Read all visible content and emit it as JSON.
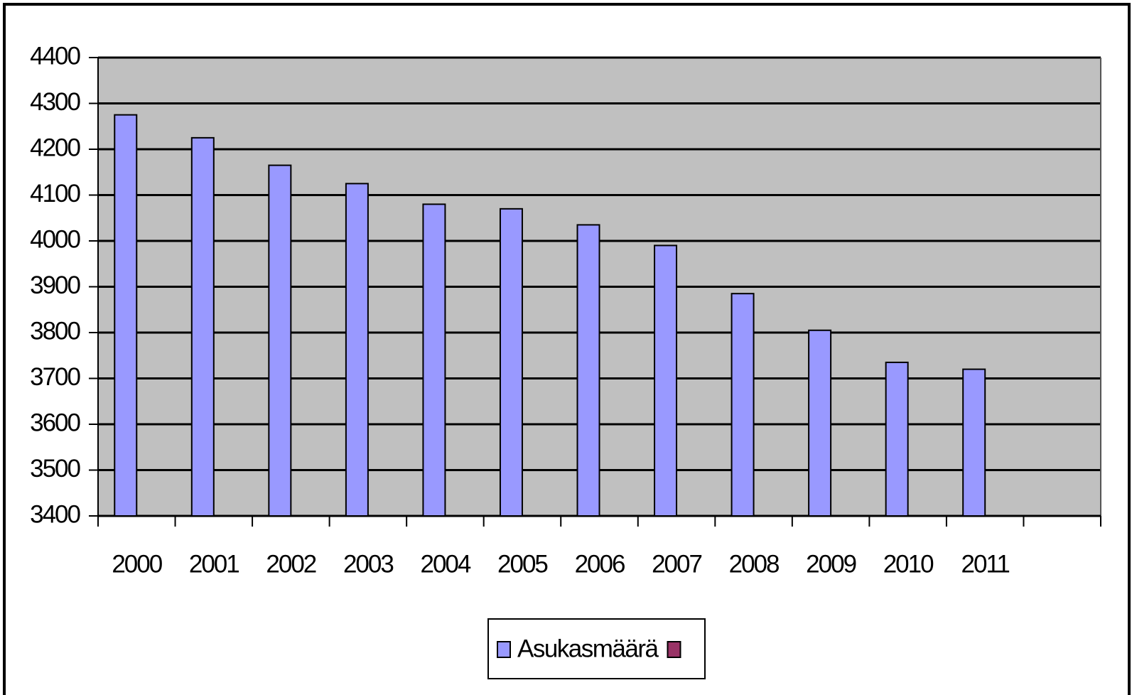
{
  "chart_data": {
    "type": "bar",
    "categories": [
      "2000",
      "2001",
      "2002",
      "2003",
      "2004",
      "2005",
      "2006",
      "2007",
      "2008",
      "2009",
      "2010",
      "2011",
      null
    ],
    "series": [
      {
        "name": "Asukasmäärä",
        "color": "#9999ff",
        "values": [
          4275,
          4225,
          4165,
          4125,
          4080,
          4070,
          4035,
          3990,
          3885,
          3805,
          3735,
          3720,
          null
        ]
      },
      {
        "name": null,
        "color": "#993366",
        "values": [
          null,
          null,
          null,
          null,
          null,
          null,
          null,
          null,
          null,
          null,
          null,
          null,
          null
        ]
      }
    ],
    "ylim": [
      3400,
      4400
    ],
    "yticks": [
      3400,
      3500,
      3600,
      3700,
      3800,
      3900,
      4000,
      4100,
      4200,
      4300,
      4400
    ],
    "grid": true,
    "legend": "bottom",
    "plot_background": "#c0c0c0"
  }
}
